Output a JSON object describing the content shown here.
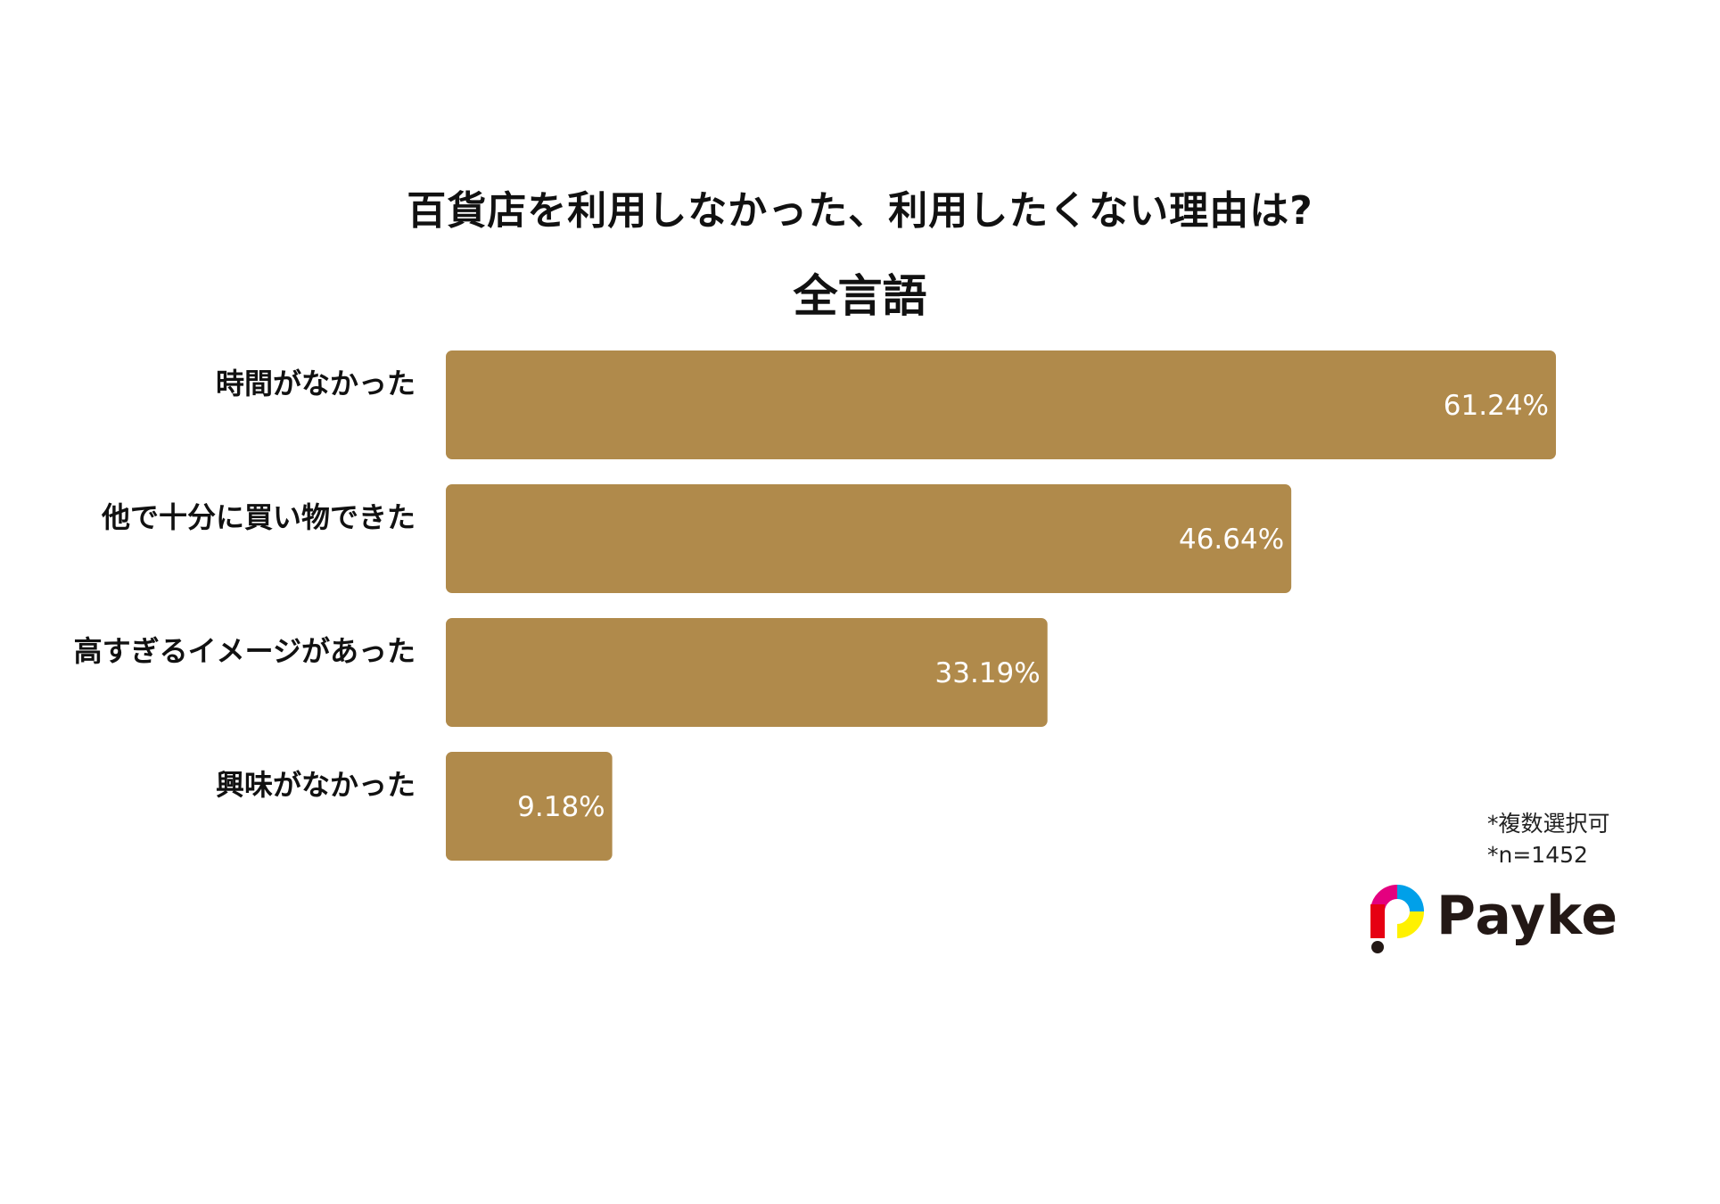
{
  "chart_data": {
    "type": "bar",
    "orientation": "horizontal",
    "title": "百貨店を利用しなかった、利用したくない理由は?",
    "subtitle": "全言語",
    "categories": [
      "時間がなかった",
      "他で十分に買い物できた",
      "高すぎるイメージがあった",
      "興味がなかった"
    ],
    "values": [
      61.24,
      46.64,
      33.19,
      9.18
    ],
    "value_labels": [
      "61.24%",
      "46.64%",
      "33.19%",
      "9.18%"
    ],
    "xlim": [
      0,
      61.24
    ],
    "grid": false,
    "bar_color": "#b08a4b",
    "label_color": "#ffffff"
  },
  "notes": {
    "multi_select": "*複数選択可",
    "sample_size": "*n=1452"
  },
  "logo": {
    "text": "Payke",
    "icon": "payke-logo-icon",
    "colors": [
      "#00a0e9",
      "#e4007f",
      "#fff100",
      "#e60012",
      "#231815"
    ]
  }
}
